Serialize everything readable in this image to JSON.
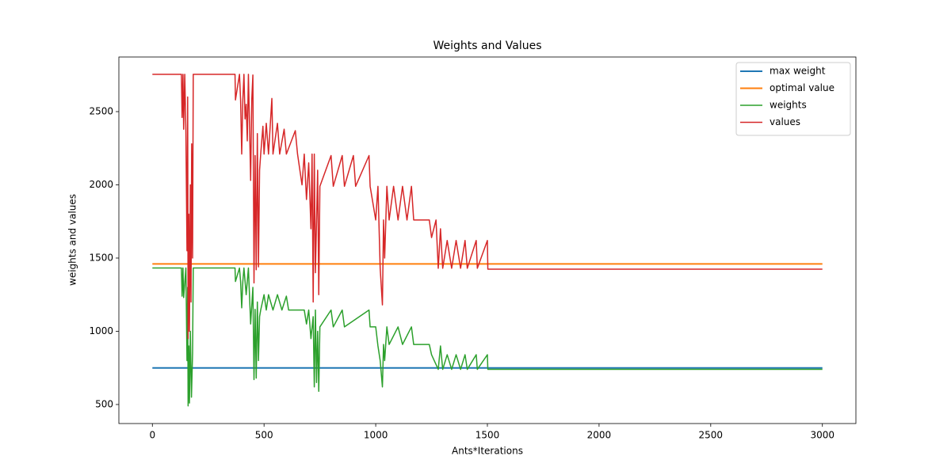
{
  "chart_data": {
    "type": "line",
    "title": "Weights and Values",
    "x_label": "Ants*Iterations",
    "y_label": "weights and values",
    "xlim": [
      -150,
      3150
    ],
    "xticks": [
      0,
      500,
      1000,
      1500,
      2000,
      2500,
      3000
    ],
    "ylim": [
      370,
      2873
    ],
    "yticks": [
      500,
      1000,
      1500,
      2000,
      2500
    ],
    "legend": "upper right",
    "grid": false,
    "series": [
      {
        "name": "max weight",
        "color": "#1f77b4",
        "linewidth": 2,
        "x": [
          0,
          3000
        ],
        "values": [
          750,
          750
        ]
      },
      {
        "name": "optimal value",
        "color": "#ff7f0e",
        "linewidth": 2,
        "x": [
          0,
          3000
        ],
        "values": [
          1460,
          1460
        ]
      },
      {
        "name": "weights",
        "color": "#2ca02c",
        "linewidth": 1.5,
        "x": [
          0,
          130,
          133,
          137,
          140,
          150,
          155,
          158,
          160,
          163,
          166,
          170,
          175,
          180,
          183,
          370,
          372,
          390,
          395,
          400,
          405,
          410,
          420,
          430,
          440,
          450,
          455,
          460,
          465,
          470,
          475,
          480,
          485,
          500,
          510,
          520,
          540,
          560,
          580,
          600,
          610,
          680,
          690,
          700,
          710,
          720,
          725,
          730,
          735,
          740,
          745,
          750,
          800,
          810,
          850,
          860,
          970,
          975,
          1000,
          1010,
          1020,
          1030,
          1035,
          1040,
          1050,
          1060,
          1100,
          1120,
          1160,
          1170,
          1240,
          1250,
          1280,
          1290,
          1300,
          1320,
          1340,
          1360,
          1380,
          1400,
          1410,
          1450,
          1455,
          1500,
          1502,
          3000
        ],
        "values": [
          1432,
          1432,
          1240,
          1432,
          1230,
          1432,
          800,
          1300,
          490,
          900,
          510,
          1000,
          550,
          850,
          1432,
          1432,
          1340,
          1432,
          1340,
          1160,
          1340,
          1432,
          1250,
          1432,
          1050,
          1300,
          670,
          1150,
          680,
          1200,
          800,
          1100,
          1145,
          1250,
          1145,
          1250,
          1145,
          1250,
          1145,
          1240,
          1145,
          1145,
          1050,
          1145,
          950,
          1100,
          620,
          1145,
          650,
          1000,
          590,
          1030,
          1145,
          1030,
          1145,
          1030,
          1145,
          1030,
          1030,
          900,
          800,
          620,
          910,
          800,
          1030,
          910,
          1030,
          910,
          1030,
          910,
          910,
          840,
          740,
          900,
          740,
          840,
          740,
          840,
          740,
          840,
          740,
          840,
          740,
          840,
          740,
          740
        ]
      },
      {
        "name": "values",
        "color": "#d62728",
        "linewidth": 1.5,
        "x": [
          0,
          130,
          133,
          137,
          140,
          145,
          150,
          155,
          158,
          160,
          163,
          166,
          170,
          173,
          176,
          180,
          183,
          370,
          372,
          390,
          395,
          400,
          405,
          410,
          415,
          420,
          425,
          430,
          435,
          440,
          445,
          450,
          455,
          460,
          465,
          470,
          475,
          480,
          485,
          495,
          500,
          510,
          520,
          535,
          540,
          560,
          570,
          590,
          600,
          640,
          650,
          670,
          680,
          690,
          700,
          710,
          715,
          720,
          725,
          730,
          740,
          745,
          750,
          800,
          810,
          850,
          860,
          900,
          910,
          970,
          975,
          1000,
          1010,
          1020,
          1030,
          1035,
          1040,
          1050,
          1060,
          1080,
          1100,
          1120,
          1140,
          1160,
          1170,
          1240,
          1250,
          1270,
          1280,
          1290,
          1300,
          1320,
          1340,
          1360,
          1380,
          1400,
          1410,
          1450,
          1455,
          1500,
          1502,
          3000
        ],
        "values": [
          2755,
          2755,
          2460,
          2755,
          2380,
          2755,
          2370,
          1550,
          2600,
          950,
          1800,
          1000,
          2000,
          1200,
          2280,
          1500,
          2755,
          2755,
          2580,
          2755,
          2580,
          2210,
          2580,
          2755,
          2450,
          2550,
          2300,
          2755,
          2400,
          2030,
          2580,
          2750,
          1330,
          2200,
          1420,
          2350,
          1440,
          2100,
          2210,
          2400,
          2210,
          2420,
          2210,
          2590,
          2210,
          2420,
          2210,
          2380,
          2210,
          2370,
          2210,
          2000,
          2210,
          1900,
          2150,
          1700,
          2210,
          1200,
          2210,
          1400,
          2100,
          1250,
          1990,
          2200,
          1990,
          2200,
          1990,
          2200,
          1990,
          2200,
          1990,
          1760,
          1990,
          1430,
          1180,
          1760,
          1500,
          1990,
          1760,
          1990,
          1760,
          1990,
          1760,
          1990,
          1760,
          1760,
          1640,
          1760,
          1430,
          1700,
          1430,
          1620,
          1430,
          1620,
          1430,
          1620,
          1430,
          1620,
          1430,
          1620,
          1424,
          1424
        ]
      }
    ]
  }
}
